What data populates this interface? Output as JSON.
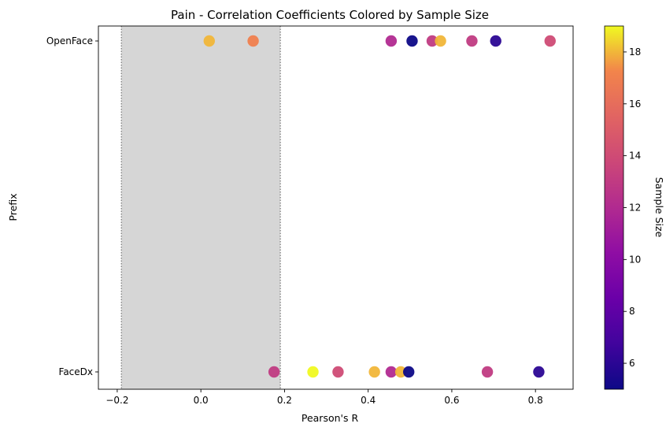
{
  "chart_data": {
    "type": "scatter",
    "title": "Pain - Correlation Coefficients Colored by Sample Size",
    "xlabel": "Pearson's R",
    "ylabel": "Prefix",
    "xlim": [
      -0.245,
      0.89
    ],
    "x_ticks": [
      -0.2,
      0.0,
      0.2,
      0.4,
      0.6,
      0.8
    ],
    "x_tick_labels": [
      "−0.2",
      "0.0",
      "0.2",
      "0.4",
      "0.6",
      "0.8"
    ],
    "categories": [
      "OpenFace",
      "FaceDx"
    ],
    "shaded_region": [
      -0.19,
      0.19
    ],
    "grid": false,
    "colormap": "plasma",
    "colorbar": {
      "label": "Sample Size",
      "range": [
        5,
        19
      ],
      "ticks": [
        6,
        8,
        10,
        12,
        14,
        16,
        18
      ]
    },
    "series": [
      {
        "category": "OpenFace",
        "points": [
          {
            "x": 0.02,
            "n": 18
          },
          {
            "x": 0.125,
            "n": 17
          },
          {
            "x": 0.455,
            "n": 12
          },
          {
            "x": 0.505,
            "n": 5
          },
          {
            "x": 0.553,
            "n": 13
          },
          {
            "x": 0.573,
            "n": 18
          },
          {
            "x": 0.648,
            "n": 13
          },
          {
            "x": 0.705,
            "n": 6
          },
          {
            "x": 0.835,
            "n": 14
          }
        ]
      },
      {
        "category": "FaceDx",
        "points": [
          {
            "x": 0.175,
            "n": 13
          },
          {
            "x": 0.268,
            "n": 19
          },
          {
            "x": 0.328,
            "n": 14
          },
          {
            "x": 0.415,
            "n": 18
          },
          {
            "x": 0.455,
            "n": 12
          },
          {
            "x": 0.478,
            "n": 18
          },
          {
            "x": 0.497,
            "n": 5
          },
          {
            "x": 0.685,
            "n": 13
          },
          {
            "x": 0.808,
            "n": 6
          }
        ]
      }
    ]
  }
}
